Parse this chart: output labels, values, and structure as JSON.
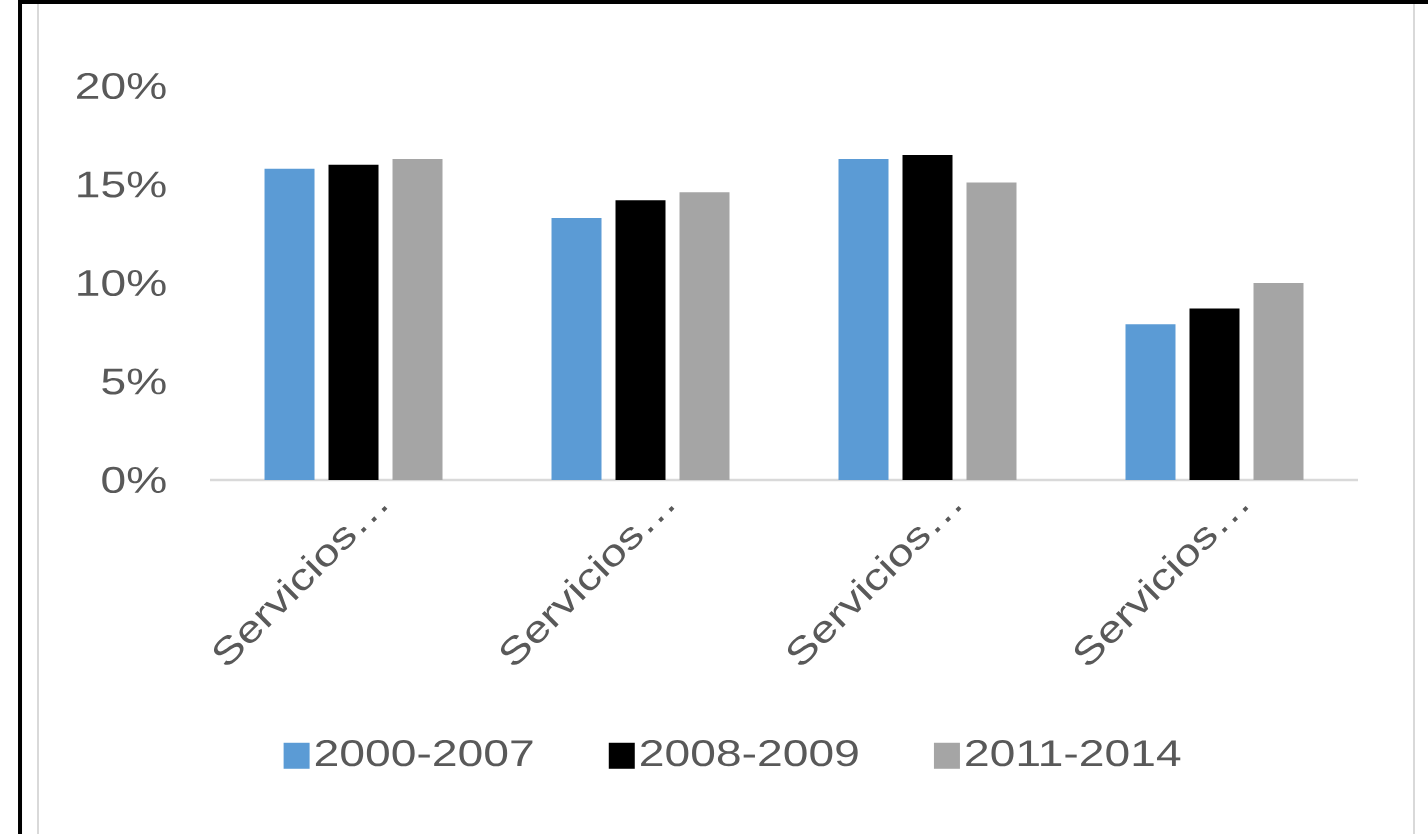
{
  "chart_data": {
    "type": "bar",
    "categories": [
      "Servicios…",
      "Servicios…",
      "Servicios…",
      "Servicios…"
    ],
    "series": [
      {
        "name": "2000-2007",
        "color": "#5b9bd5",
        "values": [
          15.8,
          13.3,
          16.3,
          7.9
        ]
      },
      {
        "name": "2008-2009",
        "color": "#000000",
        "values": [
          16.0,
          14.2,
          16.5,
          8.7
        ]
      },
      {
        "name": "2011-2014",
        "color": "#a5a5a5",
        "values": [
          16.3,
          14.6,
          15.1,
          10.0
        ]
      }
    ],
    "ylim": [
      0,
      20
    ],
    "yticks": [
      {
        "value": 0,
        "label": "0%"
      },
      {
        "value": 5,
        "label": "5%"
      },
      {
        "value": 10,
        "label": "10%"
      },
      {
        "value": 15,
        "label": "15%"
      },
      {
        "value": 20,
        "label": "20%"
      }
    ],
    "legend": "bottom"
  }
}
